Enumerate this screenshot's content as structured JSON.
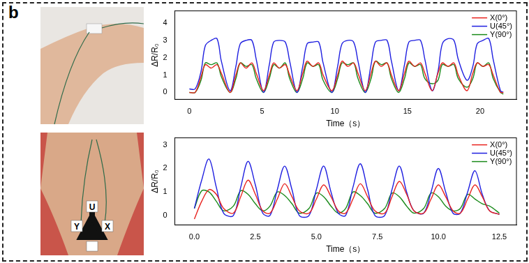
{
  "panel_label": "b",
  "photo_labels": [
    "Y",
    "U",
    "X"
  ],
  "chart_data": [
    {
      "type": "line",
      "x_label": "Time（s）",
      "y_label": "ΔR/R₀",
      "xlim": [
        -1,
        22.5
      ],
      "xticks": [
        0,
        5,
        10,
        15,
        20
      ],
      "ylim": [
        -0.4,
        4.7
      ],
      "yticks": [
        0,
        1,
        2,
        3,
        4
      ],
      "grid": false,
      "legend": "upper right",
      "x": [
        0,
        0.4,
        0.8,
        1.1,
        1.5,
        1.9,
        2.2,
        2.8,
        3.2,
        3.5,
        3.9,
        4.3,
        4.6,
        5.1,
        5.5,
        5.8,
        6.2,
        6.6,
        6.9,
        7.4,
        7.8,
        8.1,
        8.5,
        8.9,
        9.2,
        9.8,
        10.2,
        10.5,
        10.9,
        11.3,
        11.6,
        12.1,
        12.5,
        12.8,
        13.2,
        13.6,
        13.9,
        14.4,
        14.8,
        15.1,
        15.5,
        15.9,
        16.2,
        16.7,
        17.1,
        17.4,
        17.8,
        18.2,
        18.5,
        19.1,
        19.5,
        19.8,
        20.2,
        20.6,
        20.9,
        21.4,
        21.6
      ],
      "series": [
        {
          "name": "X(0°)",
          "color": "#e8231f",
          "values": [
            0.0,
            0.0,
            0.9,
            1.6,
            1.4,
            1.6,
            1.1,
            0.0,
            1.0,
            1.7,
            1.4,
            1.7,
            1.1,
            0.1,
            1.0,
            1.7,
            1.4,
            1.6,
            1.0,
            0.1,
            1.1,
            1.8,
            1.5,
            1.7,
            1.0,
            0.1,
            1.0,
            1.8,
            1.5,
            1.7,
            1.1,
            0.1,
            1.1,
            1.8,
            1.5,
            1.7,
            1.0,
            0.1,
            1.1,
            1.8,
            1.5,
            1.7,
            1.1,
            0.1,
            1.1,
            1.7,
            1.5,
            1.7,
            1.0,
            0.1,
            1.1,
            1.7,
            1.5,
            1.6,
            1.0,
            0.0,
            0.0
          ]
        },
        {
          "name": "U(45°)",
          "color": "#1f1fe0",
          "values": [
            0.2,
            0.2,
            1.2,
            2.7,
            3.0,
            3.1,
            1.8,
            0.1,
            1.5,
            2.8,
            3.0,
            3.0,
            1.9,
            0.0,
            1.6,
            2.9,
            3.0,
            2.9,
            1.8,
            0.0,
            1.5,
            2.8,
            2.9,
            2.9,
            1.7,
            0.0,
            1.5,
            2.8,
            3.0,
            2.9,
            1.8,
            0.0,
            1.6,
            2.9,
            3.0,
            3.0,
            1.8,
            0.1,
            1.6,
            2.9,
            3.0,
            3.0,
            1.9,
            0.1,
            1.2,
            2.8,
            3.1,
            3.0,
            1.9,
            0.7,
            1.5,
            2.8,
            3.0,
            3.1,
            1.9,
            0.1,
            0.0
          ]
        },
        {
          "name": "Y(90°)",
          "color": "#1a8a1a",
          "values": [
            0.0,
            0.0,
            0.7,
            1.7,
            1.6,
            1.7,
            0.9,
            0.0,
            0.8,
            1.7,
            1.5,
            1.6,
            0.8,
            0.0,
            0.8,
            1.6,
            1.4,
            1.7,
            0.8,
            0.0,
            0.8,
            1.7,
            1.5,
            1.6,
            0.7,
            0.0,
            0.8,
            1.7,
            1.6,
            1.7,
            0.8,
            0.0,
            0.8,
            1.8,
            1.6,
            1.7,
            0.8,
            0.0,
            0.8,
            1.7,
            1.5,
            1.6,
            0.8,
            0.5,
            0.7,
            1.6,
            1.5,
            1.6,
            0.8,
            0.3,
            0.8,
            1.7,
            1.5,
            1.7,
            0.8,
            0.0,
            -0.1
          ]
        }
      ]
    },
    {
      "type": "line",
      "x_label": "Time（s）",
      "y_label": "ΔR/R₀",
      "xlim": [
        -0.8,
        13.2
      ],
      "xticks": [
        {
          "value": 0,
          "label": "0.0"
        },
        2.5,
        {
          "value": 5,
          "label": "5.0"
        },
        7.5,
        {
          "value": 10,
          "label": "10.0"
        },
        12.5
      ],
      "ylim": [
        -0.4,
        3.3
      ],
      "yticks": [
        0,
        1,
        2,
        3
      ],
      "grid": false,
      "legend": "upper right",
      "x": [
        0,
        0.3,
        0.6,
        0.9,
        1.2,
        1.6,
        1.9,
        2.2,
        2.5,
        2.8,
        3.1,
        3.4,
        3.7,
        4.0,
        4.3,
        4.7,
        5.0,
        5.3,
        5.6,
        5.9,
        6.2,
        6.5,
        6.8,
        7.1,
        7.4,
        7.8,
        8.1,
        8.4,
        8.7,
        9.0,
        9.4,
        9.7,
        10.0,
        10.3,
        10.6,
        10.9,
        11.2,
        11.5,
        11.8,
        12.1,
        12.5
      ],
      "series": [
        {
          "name": "X(0°)",
          "color": "#e8231f",
          "values": [
            -0.15,
            0.6,
            1.1,
            0.9,
            0.3,
            0.1,
            0.8,
            1.5,
            0.9,
            0.2,
            0.1,
            0.7,
            1.35,
            0.8,
            0.2,
            0.1,
            0.7,
            1.3,
            0.8,
            0.2,
            0.1,
            0.7,
            1.35,
            0.8,
            0.2,
            0.1,
            0.8,
            1.45,
            0.9,
            0.2,
            0.1,
            0.7,
            1.3,
            0.8,
            0.2,
            0.1,
            0.7,
            1.3,
            0.8,
            0.2,
            0.05
          ]
        },
        {
          "name": "U(45°)",
          "color": "#1f1fe0",
          "values": [
            0.3,
            1.5,
            2.4,
            1.2,
            0.1,
            0.0,
            1.2,
            2.3,
            1.3,
            0.1,
            0.0,
            1.1,
            2.1,
            1.1,
            0.0,
            0.0,
            1.1,
            2.1,
            1.0,
            0.1,
            0.0,
            1.2,
            2.2,
            1.1,
            0.0,
            0.0,
            1.1,
            2.1,
            1.0,
            0.2,
            0.1,
            1.0,
            2.0,
            1.0,
            0.1,
            0.1,
            1.0,
            1.9,
            0.9,
            0.2,
            0.05
          ]
        },
        {
          "name": "Y(90°)",
          "color": "#1a8a1a",
          "values": [
            0.3,
            1.05,
            1.0,
            0.6,
            0.2,
            0.4,
            1.05,
            0.9,
            0.5,
            0.2,
            0.4,
            1.0,
            0.85,
            0.5,
            0.1,
            0.3,
            0.95,
            0.8,
            0.4,
            0.1,
            0.3,
            1.0,
            0.85,
            0.5,
            0.1,
            0.3,
            0.95,
            0.8,
            0.4,
            0.1,
            0.3,
            0.95,
            0.8,
            0.4,
            0.2,
            0.3,
            0.9,
            0.7,
            0.5,
            0.4,
            0.1
          ]
        }
      ]
    }
  ]
}
